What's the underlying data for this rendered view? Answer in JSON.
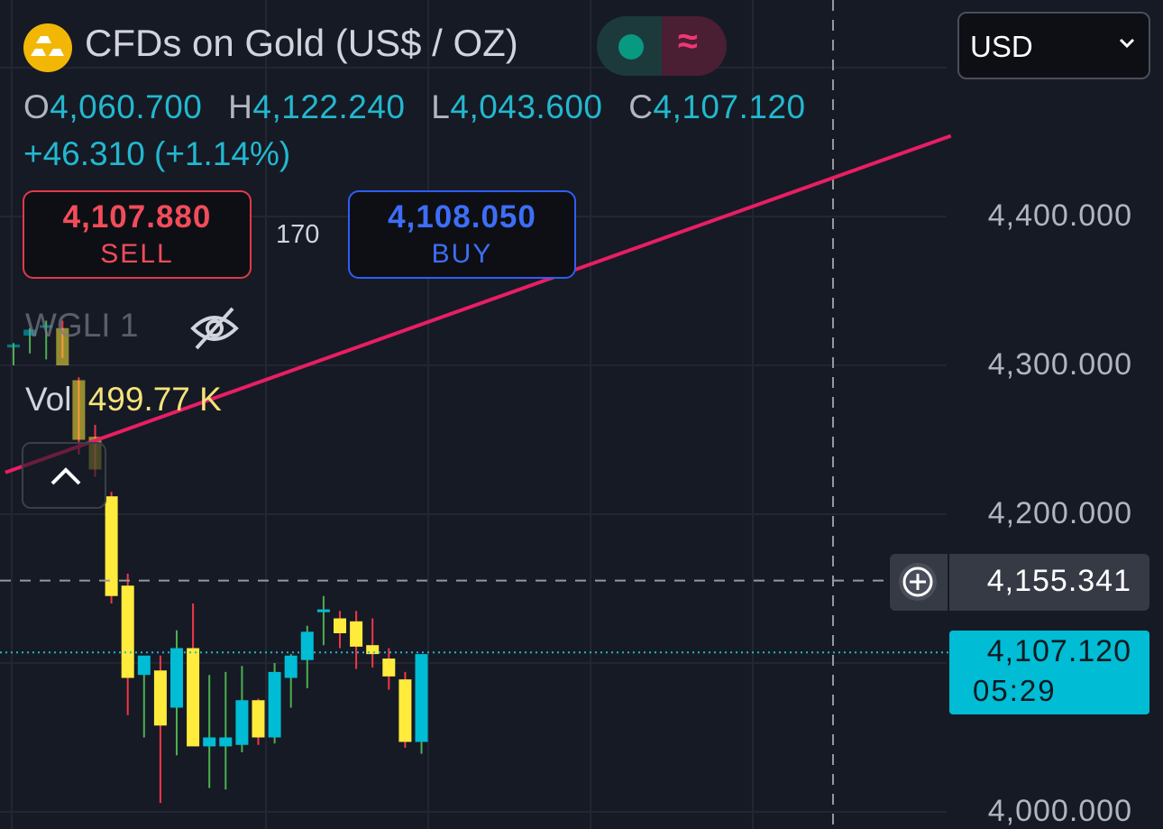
{
  "header": {
    "title": "CFDs on Gold (US$ / OZ)",
    "ohlc": {
      "o_label": "O",
      "o_value": "4,060.700",
      "h_label": "H",
      "h_value": "4,122.240",
      "l_label": "L",
      "l_value": "4,043.600",
      "c_label": "C",
      "c_value": "4,107.120"
    },
    "change": "+46.310 (+1.14%)"
  },
  "trade": {
    "sell_price": "4,107.880",
    "sell_label": "SELL",
    "spread": "170",
    "buy_price": "4,108.050",
    "buy_label": "BUY"
  },
  "indicators": {
    "wgli": "WGLI 1",
    "vol_label": "Vol",
    "vol_value": "499.77 K"
  },
  "currency": {
    "selected": "USD"
  },
  "crosshair": {
    "price": "4,155.341"
  },
  "last_price": {
    "price": "4,107.120",
    "countdown": "05:29"
  },
  "colors": {
    "background": "#161a25",
    "up": "#00bcd4",
    "down": "#ffeb3b",
    "trendline": "#e91e63",
    "accent": "#22b8cf"
  },
  "chart_data": {
    "type": "candlestick",
    "title": "CFDs on Gold (US$ / OZ)",
    "y_ticks": [
      4000,
      4200,
      4300,
      4400
    ],
    "y_tick_labels": [
      "4,000.000",
      "4,200.000",
      "4,300.000",
      "4,400.000"
    ],
    "ylim": [
      3995,
      4500
    ],
    "crosshair_price": 4155.341,
    "last_price": 4107.12,
    "trendline": {
      "from_index": -0.5,
      "from_value": 4228,
      "to_index": 47.5,
      "to_value": 4436
    },
    "candles": [
      {
        "o": 4312,
        "h": 4315,
        "l": 4300,
        "c": 4314
      },
      {
        "o": 4320,
        "h": 4325,
        "l": 4308,
        "c": 4324
      },
      {
        "o": 4326,
        "h": 4330,
        "l": 4304,
        "c": 4327
      },
      {
        "o": 4325,
        "h": 4330,
        "l": 4305,
        "c": 4300
      },
      {
        "o": 4290,
        "h": 4292,
        "l": 4240,
        "c": 4250
      },
      {
        "o": 4252,
        "h": 4260,
        "l": 4225,
        "c": 4230
      },
      {
        "o": 4212,
        "h": 4215,
        "l": 4140,
        "c": 4145
      },
      {
        "o": 4152,
        "h": 4160,
        "l": 4065,
        "c": 4090
      },
      {
        "o": 4092,
        "h": 4100,
        "l": 4050,
        "c": 4105
      },
      {
        "o": 4095,
        "h": 4105,
        "l": 4006,
        "c": 4058
      },
      {
        "o": 4070,
        "h": 4122,
        "l": 4038,
        "c": 4110
      },
      {
        "o": 4110,
        "h": 4140,
        "l": 4045,
        "c": 4044
      },
      {
        "o": 4044,
        "h": 4092,
        "l": 4016,
        "c": 4050
      },
      {
        "o": 4044,
        "h": 4094,
        "l": 4015,
        "c": 4050
      },
      {
        "o": 4045,
        "h": 4098,
        "l": 4040,
        "c": 4075
      },
      {
        "o": 4075,
        "h": 4076,
        "l": 4045,
        "c": 4050
      },
      {
        "o": 4050,
        "h": 4100,
        "l": 4046,
        "c": 4094
      },
      {
        "o": 4090,
        "h": 4106,
        "l": 4070,
        "c": 4105
      },
      {
        "o": 4102,
        "h": 4125,
        "l": 4083,
        "c": 4121
      },
      {
        "o": 4135,
        "h": 4145,
        "l": 4112,
        "c": 4136
      },
      {
        "o": 4130,
        "h": 4135,
        "l": 4110,
        "c": 4120
      },
      {
        "o": 4128,
        "h": 4135,
        "l": 4096,
        "c": 4111
      },
      {
        "o": 4112,
        "h": 4130,
        "l": 4097,
        "c": 4106
      },
      {
        "o": 4103,
        "h": 4110,
        "l": 4082,
        "c": 4091
      },
      {
        "o": 4089,
        "h": 4094,
        "l": 4043,
        "c": 4047
      },
      {
        "o": 4047,
        "h": 4101,
        "l": 4039,
        "c": 4106
      }
    ]
  }
}
